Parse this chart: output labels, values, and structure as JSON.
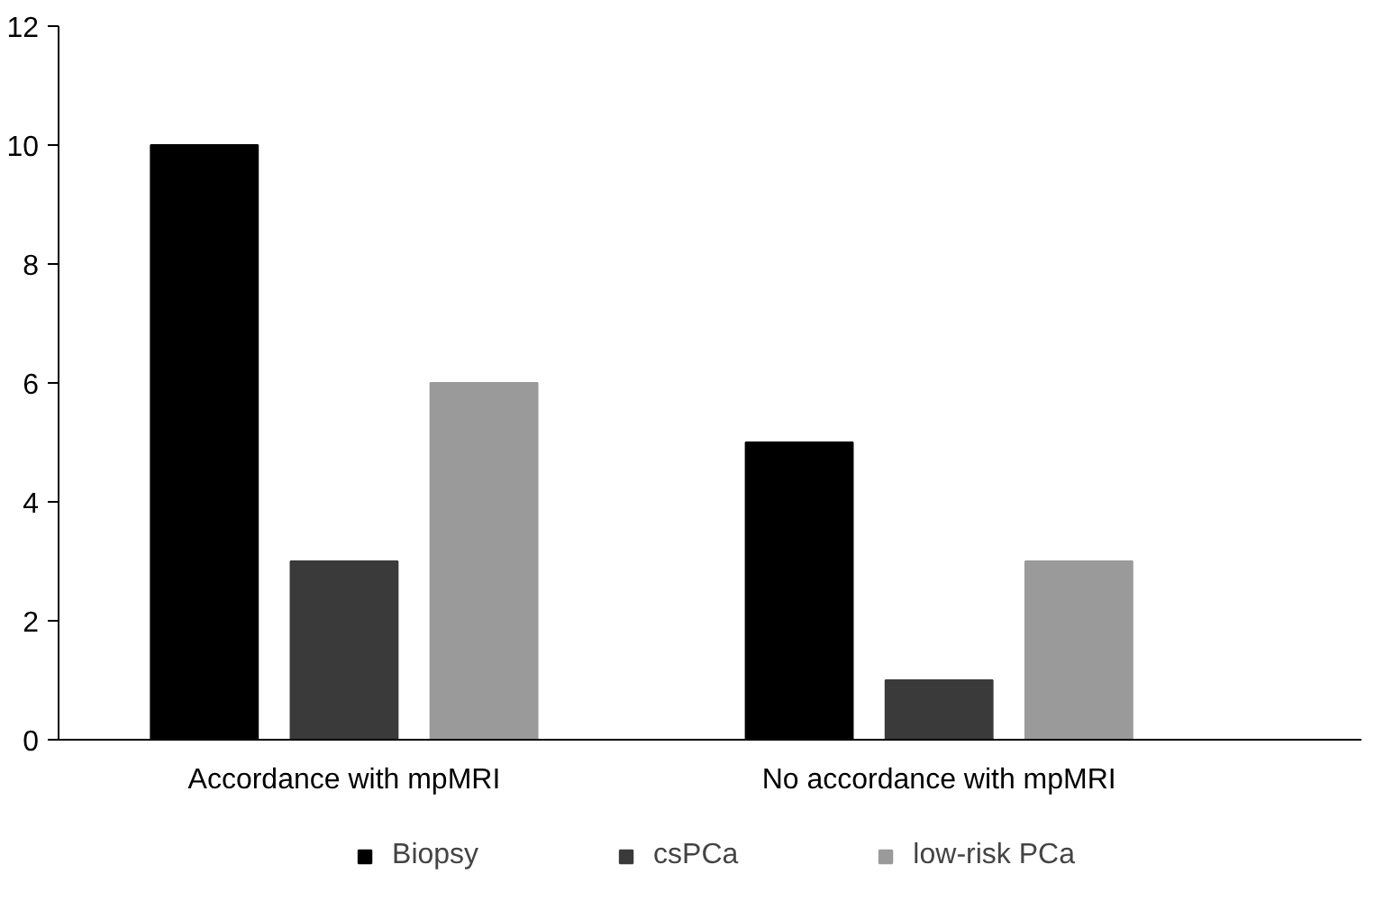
{
  "chart_data": {
    "type": "bar",
    "categories": [
      "Accordance with mpMRI",
      "No accordance with mpMRI"
    ],
    "series": [
      {
        "name": "Biopsy",
        "color": "#000000",
        "values": [
          10,
          5
        ]
      },
      {
        "name": "csPCa",
        "color": "#3a3a3a",
        "values": [
          3,
          1
        ]
      },
      {
        "name": "low-risk PCa",
        "color": "#9a9a9a",
        "values": [
          6,
          3
        ]
      }
    ],
    "ylim": [
      0,
      12
    ],
    "yticks": [
      0,
      2,
      4,
      6,
      8,
      10,
      12
    ],
    "grid": false,
    "legend": "bottom"
  }
}
